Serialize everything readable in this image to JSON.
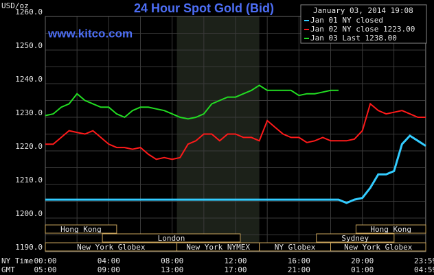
{
  "chart_data": {
    "type": "line",
    "title": "24 Hour Spot Gold (Bid)",
    "watermark": "www.kitco.com",
    "y_label": "USD/oz",
    "timestamp": "January 03, 2014 19:08",
    "x_row_labels": [
      "NY Time",
      "GMT"
    ],
    "x": [
      0,
      0.5,
      1,
      1.5,
      2,
      2.5,
      3,
      3.5,
      4,
      4.5,
      5,
      5.5,
      6,
      6.5,
      7,
      7.5,
      8,
      8.5,
      9,
      9.5,
      10,
      10.5,
      11,
      11.5,
      12,
      12.5,
      13,
      13.5,
      14,
      14.5,
      15,
      15.5,
      16,
      16.5,
      17,
      17.5,
      18,
      18.5,
      19,
      19.5,
      20,
      20.5,
      21,
      21.5,
      22,
      22.5,
      23,
      23.5,
      24
    ],
    "series": [
      {
        "name": "Jan 01 NY closed",
        "color": "#33ccff",
        "values": [
          1205.5,
          1205.5,
          1205.5,
          1205.5,
          1205.5,
          1205.5,
          1205.5,
          1205.5,
          1205.5,
          1205.5,
          1205.5,
          1205.5,
          1205.5,
          1205.5,
          1205.5,
          1205.5,
          1205.5,
          1205.5,
          1205.5,
          1205.5,
          1205.5,
          1205.5,
          1205.5,
          1205.5,
          1205.5,
          1205.5,
          1205.5,
          1205.5,
          1205.5,
          1205.5,
          1205.5,
          1205.5,
          1205.5,
          1205.5,
          1205.5,
          1205.5,
          1205.5,
          1205.5,
          1204.5,
          1205.5,
          1206,
          1209,
          1213,
          1213,
          1214,
          1222,
          1224.5,
          1223,
          1221.5
        ]
      },
      {
        "name": "Jan 02 NY close 1223.00",
        "color": "#ff1a1a",
        "values": [
          1222,
          1222,
          1224,
          1226,
          1225.5,
          1225,
          1226,
          1224,
          1222,
          1221,
          1221,
          1220.5,
          1221,
          1219,
          1217.5,
          1218,
          1217.5,
          1218,
          1222,
          1223,
          1225,
          1225,
          1223,
          1225,
          1225,
          1224,
          1224,
          1223,
          1229,
          1227,
          1225,
          1224,
          1224,
          1222.5,
          1223,
          1224,
          1223,
          1223,
          1223,
          1223.5,
          1226,
          1234,
          1232,
          1231,
          1231.5,
          1232,
          1231,
          1230,
          1230
        ]
      },
      {
        "name": "Jan 03 Last 1238.00",
        "color": "#22dd22",
        "values": [
          1230.5,
          1231,
          1233,
          1234,
          1237,
          1235,
          1234,
          1233,
          1233,
          1231,
          1230,
          1232,
          1233,
          1233,
          1232.5,
          1232,
          1231,
          1230,
          1229.5,
          1230,
          1231,
          1234,
          1235,
          1236,
          1236,
          1237,
          1238,
          1239.5,
          1238,
          1238,
          1238,
          1238,
          1236.5,
          1237,
          1237,
          1237.5,
          1238,
          1238,
          null,
          null,
          null,
          null,
          null,
          null,
          null,
          null,
          null,
          null,
          null
        ]
      }
    ],
    "xlim": [
      0,
      24
    ],
    "xticks": [
      {
        "value": 0,
        "label": "00:00"
      },
      {
        "value": 4,
        "label": "04:00"
      },
      {
        "value": 8,
        "label": "08:00"
      },
      {
        "value": 12,
        "label": "12:00"
      },
      {
        "value": 16,
        "label": "16:00"
      },
      {
        "value": 20,
        "label": "20:00"
      },
      {
        "value": 23.98,
        "label": "23:59"
      }
    ],
    "gmt_ticks": [
      "05:00",
      "09:00",
      "13:00",
      "17:00",
      "21:00",
      "01:00",
      "04:59"
    ],
    "ylim": [
      1190,
      1260
    ],
    "yticks": [
      {
        "value": 1190,
        "label": "1190.0"
      },
      {
        "value": 1200,
        "label": "1200.0"
      },
      {
        "value": 1210,
        "label": "1210.0"
      },
      {
        "value": 1220,
        "label": "1220.0"
      },
      {
        "value": 1230,
        "label": "1230.0"
      },
      {
        "value": 1240,
        "label": "1240.0"
      },
      {
        "value": 1250,
        "label": "1250.0"
      },
      {
        "value": 1260,
        "label": "1260.0"
      }
    ],
    "grid": true,
    "sessions": [
      {
        "label": "Hong Kong",
        "row": 1,
        "start": 0,
        "end": 4.5
      },
      {
        "label": "Hong Kong",
        "row": 1,
        "start": 19.6,
        "end": 24
      },
      {
        "label": "London",
        "row": 2,
        "start": 3.6,
        "end": 12.3
      },
      {
        "label": "Sydney",
        "row": 2,
        "start": 17.1,
        "end": 22
      },
      {
        "label": "New York Globex",
        "row": 3,
        "start": 0,
        "end": 8.3
      },
      {
        "label": "New York NYMEX",
        "row": 3,
        "start": 8.3,
        "end": 13.5
      },
      {
        "label": "NY Globex",
        "row": 3,
        "start": 13.5,
        "end": 18
      },
      {
        "label": "New York Globex",
        "row": 3,
        "start": 18,
        "end": 24
      }
    ]
  }
}
